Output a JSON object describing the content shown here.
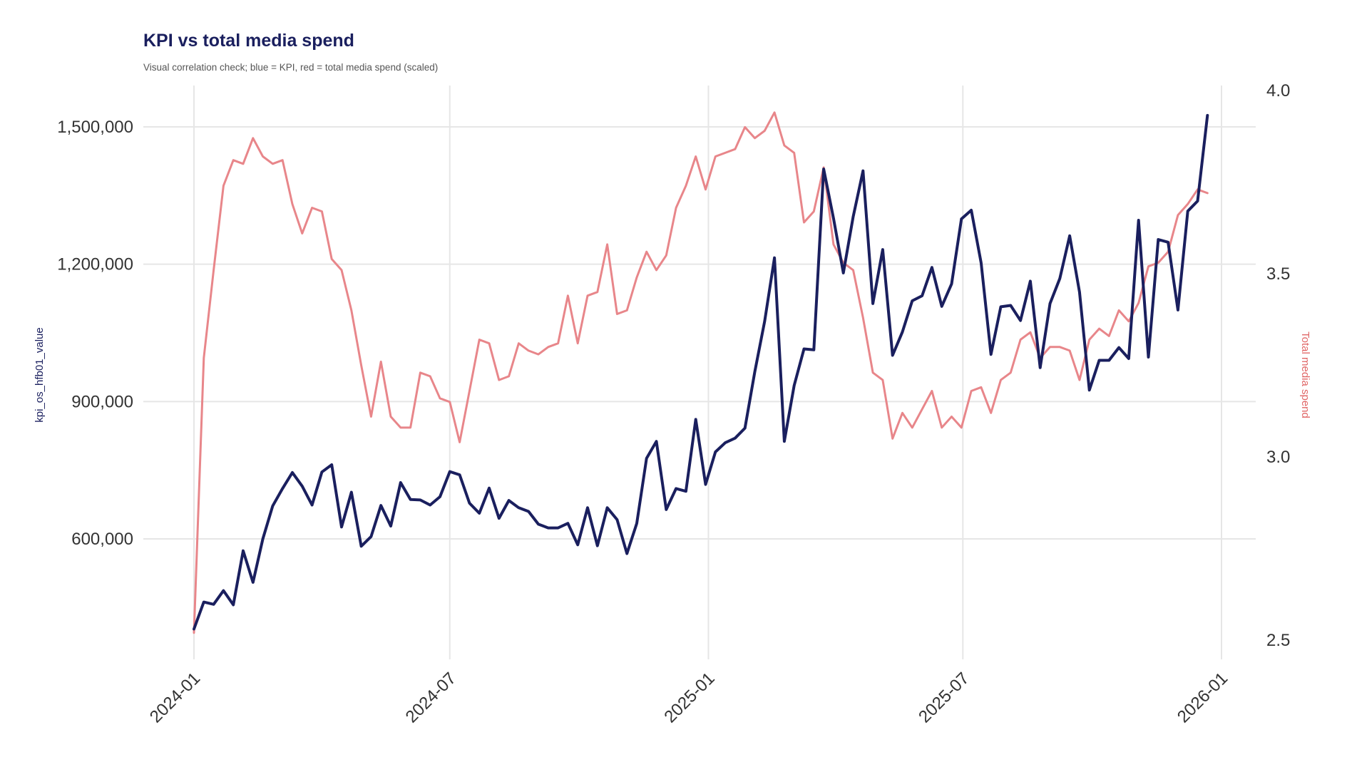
{
  "chart_data": {
    "type": "line",
    "title": "KPI vs total media spend",
    "subtitle": "Visual correlation check; blue = KPI, red = total media spend (scaled)",
    "ylabel": "kpi_os_hfb01_value",
    "ylabel_right": "Total media spend",
    "x_ticks": [
      "2024-01",
      "2024-07",
      "2025-01",
      "2025-07",
      "2026-01"
    ],
    "y_ticks": [
      "600,000",
      "900,000",
      "1,200,000",
      "1,500,000"
    ],
    "y2_ticks": [
      "2.5",
      "3.0",
      "3.5",
      "4.0"
    ],
    "ylim": [
      380000,
      1600000
    ],
    "y2lim": [
      2.48,
      4.0
    ],
    "grid": true,
    "colors": {
      "kpi": "#1a1f5e",
      "spend": "#e8868a"
    },
    "series": [
      {
        "key": "kpi",
        "axis": "left",
        "start": "2024-01-01",
        "step_days": 7,
        "values": [
          403000,
          462000,
          457000,
          487000,
          456000,
          574000,
          505000,
          600000,
          672000,
          710000,
          745000,
          715000,
          674000,
          746000,
          762000,
          626000,
          702000,
          584000,
          605000,
          673000,
          628000,
          723000,
          686000,
          685000,
          674000,
          692000,
          747000,
          740000,
          678000,
          656000,
          711000,
          645000,
          684000,
          668000,
          660000,
          632000,
          624000,
          624000,
          634000,
          587000,
          668000,
          585000,
          668000,
          642000,
          568000,
          634000,
          776000,
          813000,
          664000,
          710000,
          704000,
          861000,
          719000,
          790000,
          810000,
          820000,
          842000,
          965000,
          1075000,
          1214000,
          813000,
          935000,
          1015000,
          1013000,
          1408000,
          1300000,
          1181000,
          1304000,
          1404000,
          1114000,
          1232000,
          1001000,
          1052000,
          1120000,
          1131000,
          1193000,
          1108000,
          1157000,
          1299000,
          1318000,
          1203000,
          1003000,
          1107000,
          1110000,
          1077000,
          1163000,
          974000,
          1114000,
          1169000,
          1262000,
          1139000,
          925000,
          990000,
          990000,
          1018000,
          994000,
          1296000,
          997000,
          1254000,
          1248000,
          1100000,
          1316000,
          1338000,
          1525000
        ]
      },
      {
        "key": "spend",
        "axis": "right",
        "start": "2024-01-01",
        "step_days": 7,
        "values": [
          2.52,
          3.27,
          3.51,
          3.74,
          3.81,
          3.8,
          3.87,
          3.82,
          3.8,
          3.81,
          3.69,
          3.61,
          3.68,
          3.67,
          3.54,
          3.51,
          3.4,
          3.25,
          3.11,
          3.26,
          3.11,
          3.08,
          3.08,
          3.23,
          3.22,
          3.16,
          3.15,
          3.04,
          3.18,
          3.32,
          3.31,
          3.21,
          3.22,
          3.31,
          3.29,
          3.28,
          3.3,
          3.31,
          3.44,
          3.31,
          3.44,
          3.45,
          3.58,
          3.39,
          3.4,
          3.49,
          3.56,
          3.51,
          3.55,
          3.68,
          3.74,
          3.82,
          3.73,
          3.82,
          3.83,
          3.84,
          3.9,
          3.87,
          3.89,
          3.94,
          3.85,
          3.83,
          3.64,
          3.67,
          3.79,
          3.58,
          3.53,
          3.51,
          3.38,
          3.23,
          3.21,
          3.05,
          3.12,
          3.08,
          3.13,
          3.18,
          3.08,
          3.11,
          3.08,
          3.18,
          3.19,
          3.12,
          3.21,
          3.23,
          3.32,
          3.34,
          3.27,
          3.3,
          3.3,
          3.29,
          3.21,
          3.32,
          3.35,
          3.33,
          3.4,
          3.37,
          3.42,
          3.52,
          3.53,
          3.56,
          3.66,
          3.69,
          3.73,
          3.72
        ]
      }
    ]
  }
}
